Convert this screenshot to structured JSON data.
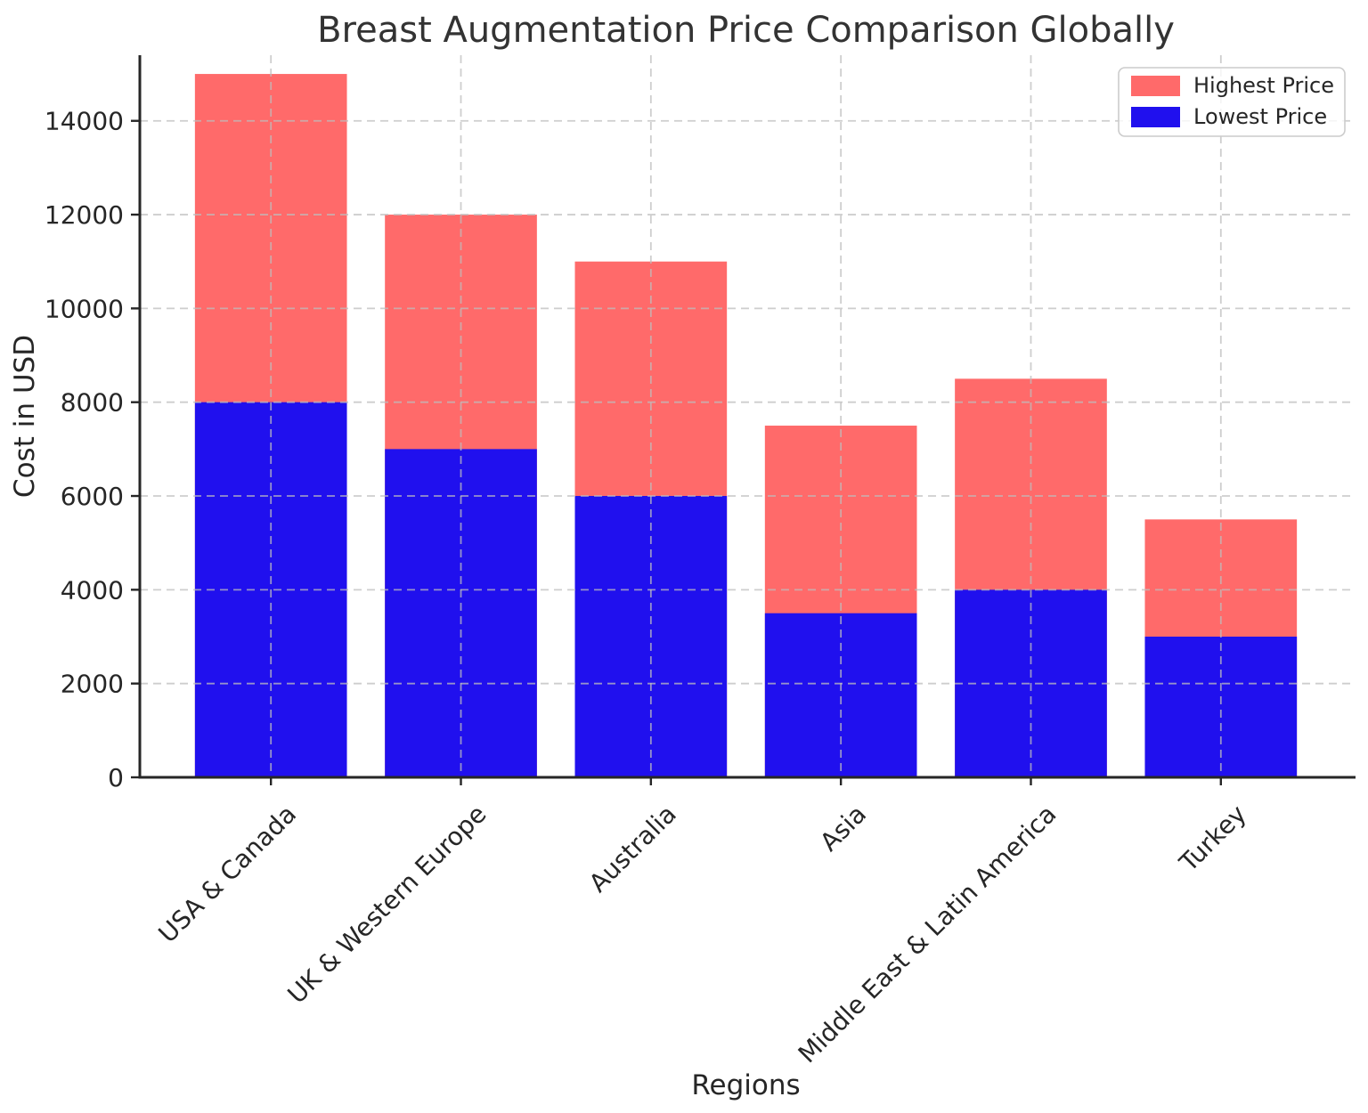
{
  "chart_data": {
    "type": "bar",
    "title": "Breast Augmentation Price Comparison Globally",
    "xlabel": "Regions",
    "ylabel": "Cost in USD",
    "categories": [
      "USA & Canada",
      "UK & Western Europe",
      "Australia",
      "Asia",
      "Middle East & Latin America",
      "Turkey"
    ],
    "series": [
      {
        "name": "Highest Price",
        "color": "#FF6A6A",
        "values": [
          15000,
          12000,
          11000,
          7500,
          8500,
          5500
        ]
      },
      {
        "name": "Lowest Price",
        "color": "#2010EE",
        "values": [
          8000,
          7000,
          6000,
          3500,
          4000,
          3000
        ]
      }
    ],
    "bar_style": "overlaid-from-zero",
    "yticks": [
      0,
      2000,
      4000,
      6000,
      8000,
      10000,
      12000,
      14000
    ],
    "ylim": [
      0,
      15400
    ],
    "grid": "dashed both axes, drawn over bars",
    "legend_position": "upper right",
    "x_tick_label_rotation_deg": 45
  }
}
